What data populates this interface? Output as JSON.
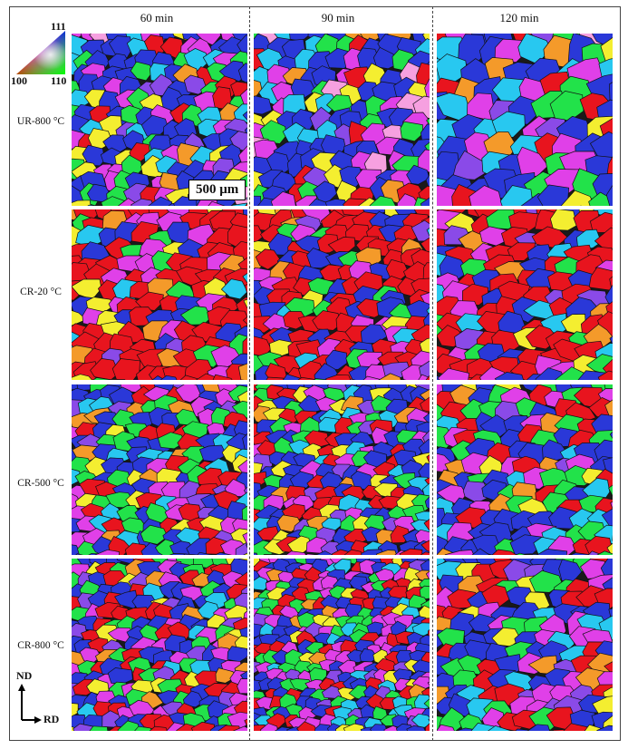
{
  "columns": [
    "60 min",
    "90 min",
    "120 min"
  ],
  "rows": [
    {
      "label": "UR-800 °C",
      "palette": "mixed-blue"
    },
    {
      "label": "CR-20 °C",
      "palette": "red-dominant"
    },
    {
      "label": "CR-500 °C",
      "palette": "mixed-fine"
    },
    {
      "label": "CR-800 °C",
      "palette": "mixed-veryfine"
    }
  ],
  "ipf_key": {
    "corner_top": "111",
    "corner_left": "100",
    "corner_right": "110"
  },
  "scale_bar": "500 μm",
  "axes": {
    "vertical": "ND",
    "horizontal": "RD"
  },
  "colors": {
    "red": "#e8141e",
    "blue": "#2a38d8",
    "green": "#22e24a",
    "magenta": "#e040e8",
    "yellow": "#f4ee30",
    "cyan": "#28c8f0",
    "orange": "#f49a2a",
    "purple": "#8a4ae8",
    "pink": "#f6a0e0"
  }
}
